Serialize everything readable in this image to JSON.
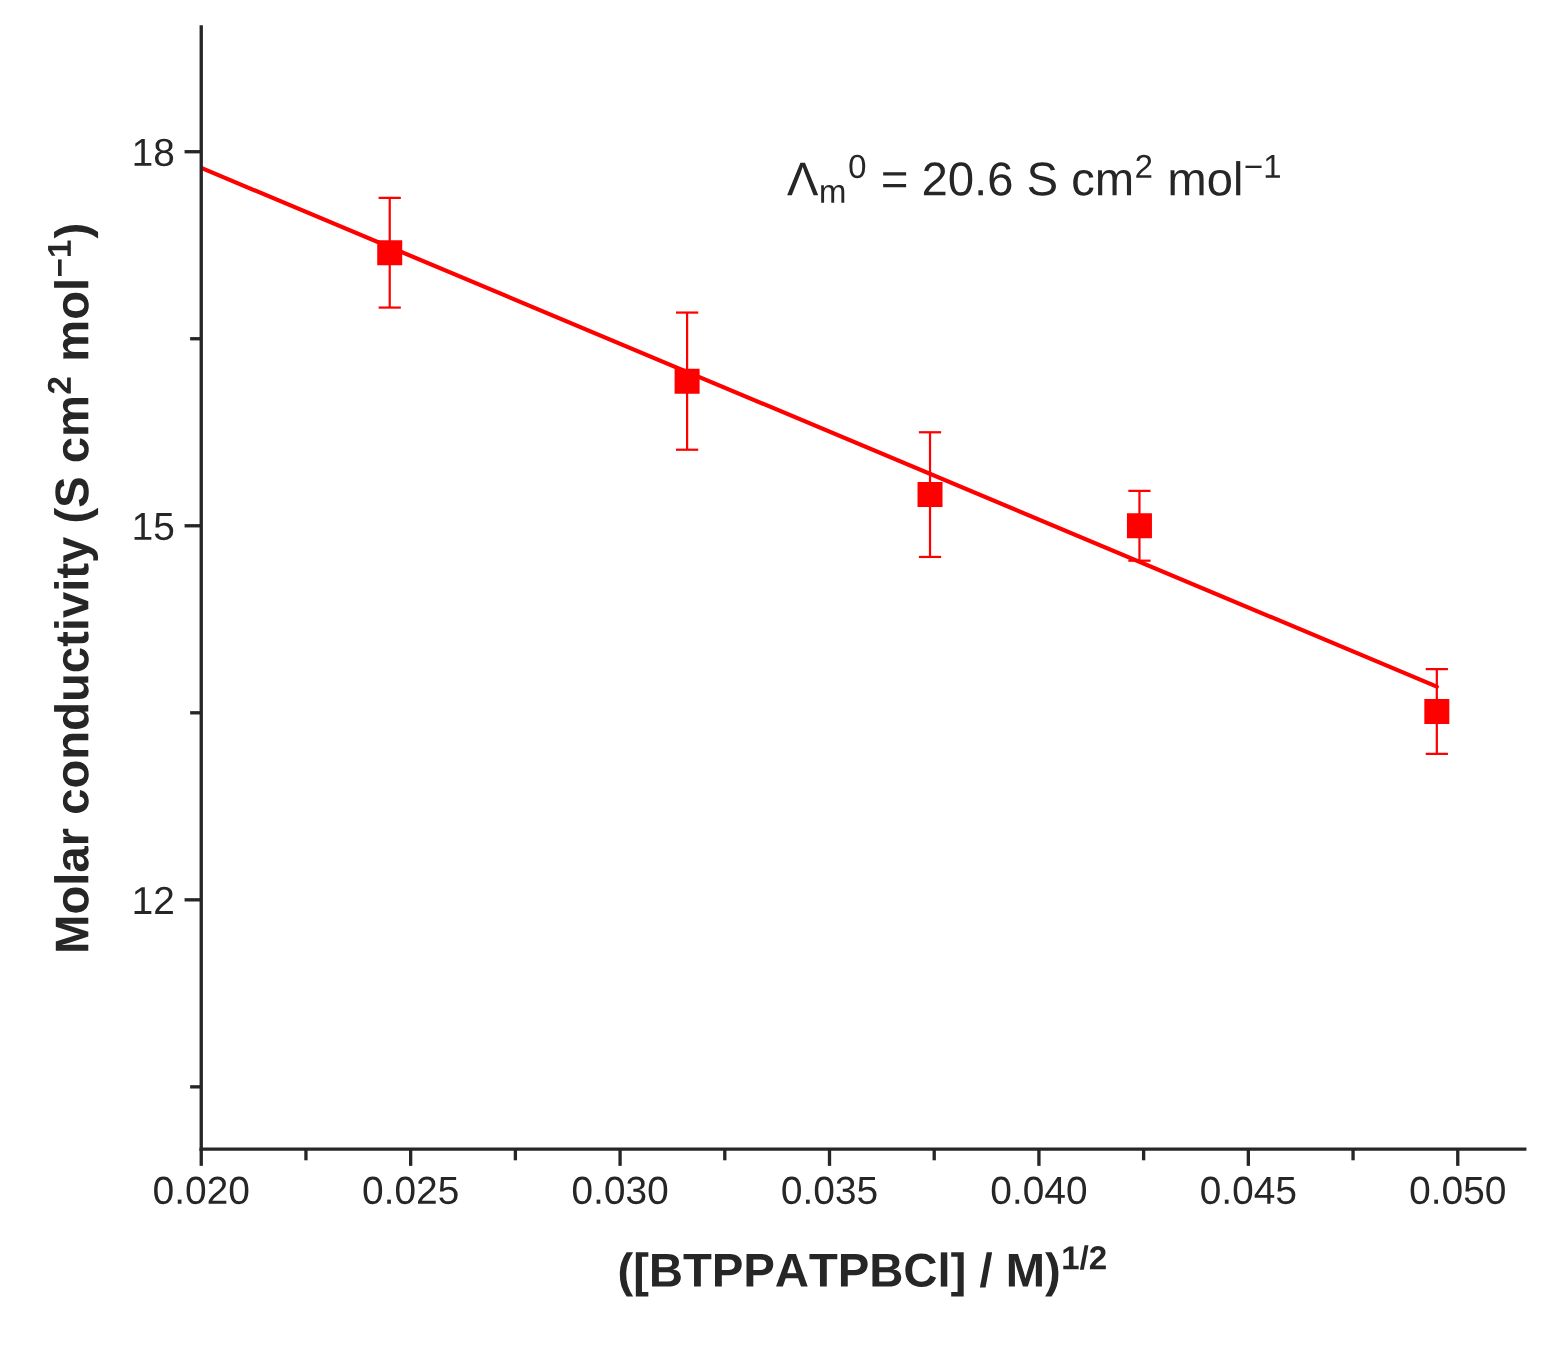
{
  "chart_data": {
    "type": "scatter",
    "xlabel": "([BTPPATPBCl] / M)$^{1/2}$",
    "ylabel": "Molar conductivity (S cm$^{2}$ mol$^{−1}$)",
    "annotations": [
      "Λ$_{m}$$^{0}$ = 20.6 S cm$^{2}$ mol$^{−1}$"
    ],
    "xlim": [
      0.02,
      0.0516
    ],
    "ylim": [
      10,
      19
    ],
    "xticks": [
      {
        "value": 0.02,
        "label": "0.020"
      },
      {
        "value": 0.0225,
        "label": null
      },
      {
        "value": 0.025,
        "label": "0.025"
      },
      {
        "value": 0.0275,
        "label": null
      },
      {
        "value": 0.03,
        "label": "0.030"
      },
      {
        "value": 0.0325,
        "label": null
      },
      {
        "value": 0.035,
        "label": "0.035"
      },
      {
        "value": 0.0375,
        "label": null
      },
      {
        "value": 0.04,
        "label": "0.040"
      },
      {
        "value": 0.0425,
        "label": null
      },
      {
        "value": 0.045,
        "label": "0.045"
      },
      {
        "value": 0.0475,
        "label": null
      },
      {
        "value": 0.05,
        "label": "0.050"
      }
    ],
    "yticks": [
      {
        "value": 10.5,
        "label": null
      },
      12,
      {
        "value": 13.5,
        "label": null
      },
      15,
      {
        "value": 16.5,
        "label": null
      },
      18
    ],
    "grid": false,
    "legend": false,
    "series": [
      {
        "color": "#ff0000",
        "marker": "square",
        "x": [
          0.0245,
          0.0316,
          0.0374,
          0.0424,
          0.0495
        ],
        "values": [
          17.19,
          16.16,
          15.25,
          15.0,
          13.51
        ],
        "errors": [
          0.44,
          0.55,
          0.5,
          0.28,
          0.34
        ]
      },
      {
        "type": "line",
        "color": "#ff0000",
        "line_style": "solid",
        "x": [
          0.02,
          0.0495
        ],
        "values": [
          17.87,
          13.71
        ]
      }
    ]
  }
}
